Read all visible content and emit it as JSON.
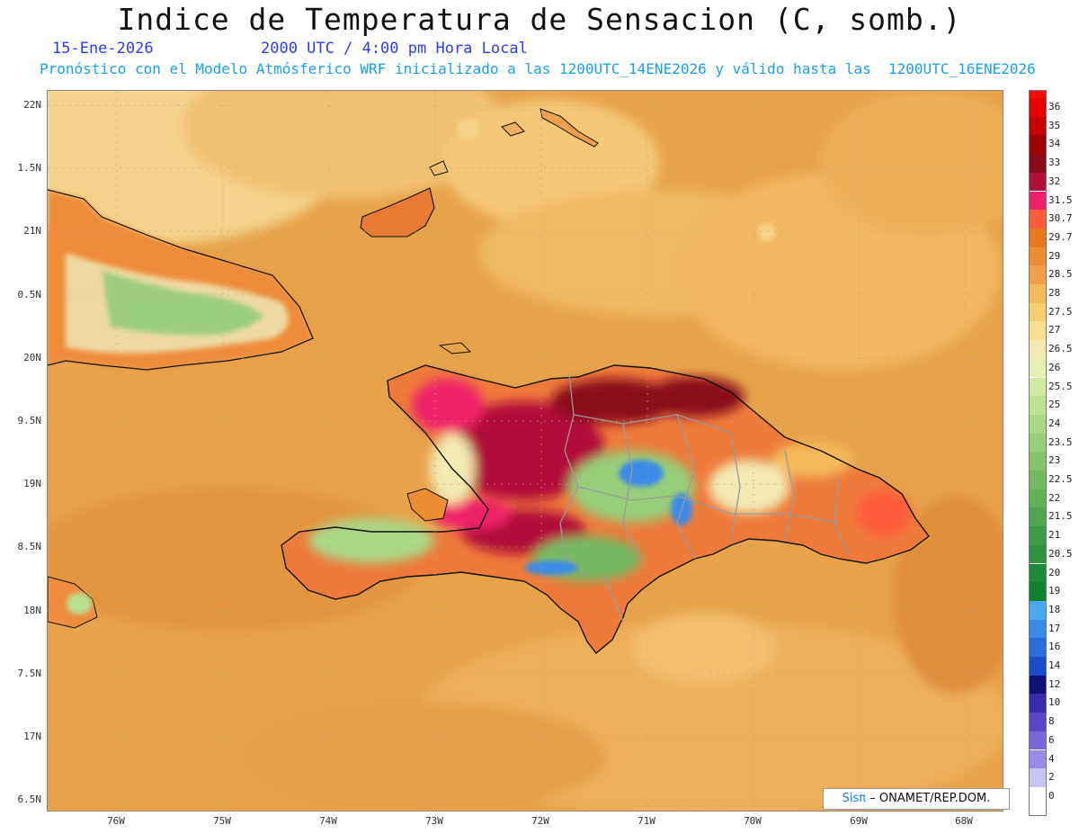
{
  "header": {
    "title": "Indice de Temperatura de Sensacion (C, somb.)",
    "date": "15-Ene-2026",
    "time": "2000 UTC / 4:00 pm Hora Local",
    "forecast_note": "Pronóstico con el Modelo Atmósferico WRF inicializado a las 1200UTC_14ENE2026 y válido hasta las  1200UTC_16ENE2026"
  },
  "map": {
    "lat_labels": [
      "22N",
      "1.5N",
      "21N",
      "0.5N",
      "20N",
      "9.5N",
      "19N",
      "8.5N",
      "18N",
      "7.5N",
      "17N",
      "6.5N"
    ],
    "lon_labels": [
      "76W",
      "75W",
      "74W",
      "73W",
      "72W",
      "71W",
      "70W",
      "69W",
      "68W"
    ],
    "background_color": "#e8a24a"
  },
  "legend": {
    "items": [
      {
        "label": "36",
        "color": "#ff0a0a"
      },
      {
        "label": "35",
        "color": "#e80000"
      },
      {
        "label": "34",
        "color": "#c80000"
      },
      {
        "label": "33",
        "color": "#a00000"
      },
      {
        "label": "32",
        "color": "#8a0a1a"
      },
      {
        "label": "31.5",
        "color": "#b0103a"
      },
      {
        "label": "30.7",
        "color": "#f0206a"
      },
      {
        "label": "29.7",
        "color": "#ff5a3a"
      },
      {
        "label": "29",
        "color": "#e8781e"
      },
      {
        "label": "28.5",
        "color": "#ec8c34"
      },
      {
        "label": "28",
        "color": "#f0a04a"
      },
      {
        "label": "27.5",
        "color": "#f5b85a"
      },
      {
        "label": "27",
        "color": "#f8cf70"
      },
      {
        "label": "26.5",
        "color": "#f8e090"
      },
      {
        "label": "26",
        "color": "#f2eab0"
      },
      {
        "label": "25.5",
        "color": "#e4f0b0"
      },
      {
        "label": "25",
        "color": "#d2eaa0"
      },
      {
        "label": "24",
        "color": "#bfe292"
      },
      {
        "label": "23.5",
        "color": "#aad884"
      },
      {
        "label": "23",
        "color": "#98ce78"
      },
      {
        "label": "22.5",
        "color": "#86c46c"
      },
      {
        "label": "22",
        "color": "#74ba60"
      },
      {
        "label": "21.5",
        "color": "#62b056"
      },
      {
        "label": "21",
        "color": "#50a64e"
      },
      {
        "label": "20.5",
        "color": "#3e9c46"
      },
      {
        "label": "20",
        "color": "#2e923e"
      },
      {
        "label": "19",
        "color": "#1e8a38"
      },
      {
        "label": "18",
        "color": "#0e8232"
      },
      {
        "label": "17",
        "color": "#4aa8f0"
      },
      {
        "label": "16",
        "color": "#3a8ae8"
      },
      {
        "label": "14",
        "color": "#2a6cdc"
      },
      {
        "label": "12",
        "color": "#1a4ec8"
      },
      {
        "label": "10",
        "color": "#10107a"
      },
      {
        "label": "8",
        "color": "#3a2ab0"
      },
      {
        "label": "6",
        "color": "#5a46c8"
      },
      {
        "label": "4",
        "color": "#7a66d8"
      },
      {
        "label": "2",
        "color": "#9a8ae8"
      },
      {
        "label": "0",
        "color": "#c8c4f4"
      }
    ]
  },
  "credit": {
    "brand": "Sisπ",
    "text": "– ONAMET/REP.DOM."
  }
}
